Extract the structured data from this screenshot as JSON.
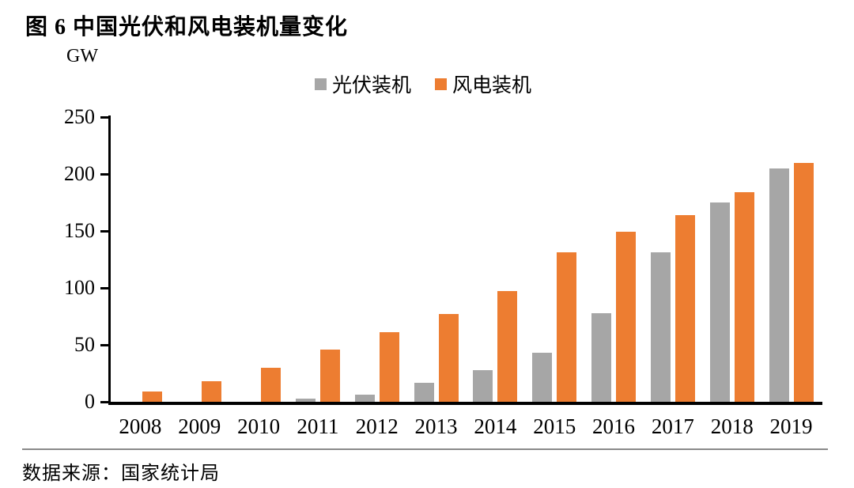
{
  "page": {
    "title": "图 6 中国光伏和风电装机量变化",
    "source": "数据来源：国家统计局"
  },
  "chart_data": {
    "type": "bar",
    "title": "图 6 中国光伏和风电装机量变化",
    "unit_label": "GW",
    "xlabel": "",
    "ylabel": "GW",
    "ylim": [
      0,
      250
    ],
    "yticks": [
      0,
      50,
      100,
      150,
      200,
      250
    ],
    "grid": false,
    "legend_position": "top-center",
    "categories": [
      "2008",
      "2009",
      "2010",
      "2011",
      "2012",
      "2013",
      "2014",
      "2015",
      "2016",
      "2017",
      "2018",
      "2019"
    ],
    "series": [
      {
        "id": "pv",
        "name": "光伏装机",
        "color": "#A6A6A6",
        "values": [
          0,
          0,
          0,
          3,
          6,
          17,
          28,
          43,
          78,
          131,
          175,
          205
        ]
      },
      {
        "id": "wind",
        "name": "风电装机",
        "color": "#ED7D31",
        "values": [
          9,
          18,
          30,
          46,
          61,
          77,
          97,
          131,
          149,
          164,
          184,
          210
        ]
      }
    ],
    "source": "数据来源：国家统计局",
    "axis_color": "#000000",
    "background_color": "#FFFFFF"
  }
}
